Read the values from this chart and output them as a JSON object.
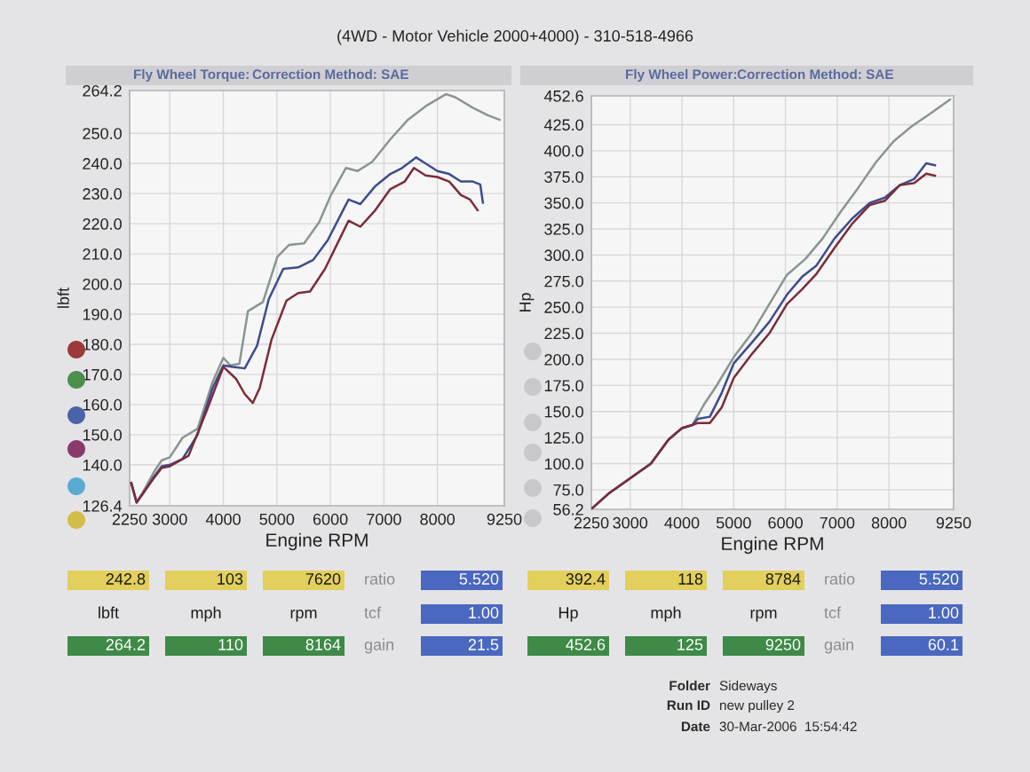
{
  "chart_data": [
    {
      "type": "line",
      "title": "(4WD - Motor Vehicle 2000+4000) - 310-518-4966",
      "subtitle": "Fly Wheel Torque:",
      "annotations": [
        "Correction Method: SAE"
      ],
      "xlabel": "Engine RPM",
      "ylabel": "lbft",
      "xlim": [
        2250,
        9250
      ],
      "xticks": [
        2250,
        3000,
        4000,
        5000,
        6000,
        7000,
        8000,
        9250
      ],
      "ylim": [
        126.4,
        264.2
      ],
      "yticks": [
        126.4,
        {
          "value": 140,
          "label": "140.0"
        },
        {
          "value": 150,
          "label": "150.0"
        },
        {
          "value": 160,
          "label": "160.0"
        },
        {
          "value": 170,
          "label": "170.0"
        },
        {
          "value": 180,
          "label": "180.0"
        },
        {
          "value": 190,
          "label": "190.0"
        },
        {
          "value": 200,
          "label": "200.0"
        },
        {
          "value": 210,
          "label": "210.0"
        },
        {
          "value": 220,
          "label": "220.0"
        },
        {
          "value": 230,
          "label": "230.0"
        },
        {
          "value": 240,
          "label": "240.0"
        },
        {
          "value": 250,
          "label": "250.0"
        },
        264.2
      ],
      "grid": true,
      "series": [
        {
          "color": "#8a9590",
          "x": [
            2280,
            2380,
            2500,
            2700,
            2850,
            3000,
            3240,
            3520,
            3800,
            4000,
            4130,
            4300,
            4460,
            4740,
            5010,
            5230,
            5510,
            5790,
            6010,
            6290,
            6510,
            6780,
            7120,
            7450,
            7780,
            8160,
            8330,
            8660,
            8940,
            9160
          ],
          "values": [
            134.0,
            127.5,
            131.0,
            137.5,
            141.5,
            142.5,
            149.0,
            152.0,
            167.5,
            175.5,
            173.0,
            173.5,
            191.0,
            194.0,
            209.0,
            213.0,
            213.5,
            220.5,
            229.5,
            238.5,
            237.5,
            240.5,
            248.0,
            254.5,
            259.0,
            263.0,
            262.0,
            258.5,
            256.0,
            254.5
          ]
        },
        {
          "color": "#3e4c8c",
          "x": [
            2280,
            2380,
            2500,
            2700,
            2850,
            3000,
            3240,
            3520,
            3800,
            4000,
            4180,
            4400,
            4630,
            4850,
            5120,
            5400,
            5680,
            5950,
            6180,
            6340,
            6560,
            6840,
            7120,
            7340,
            7600,
            7780,
            8000,
            8220,
            8440,
            8660,
            8800,
            8850
          ],
          "values": [
            134.0,
            127.5,
            130.5,
            136.0,
            139.5,
            140.0,
            142.0,
            150.0,
            165.5,
            173.0,
            172.5,
            172.0,
            179.5,
            195.0,
            205.0,
            205.5,
            208.0,
            214.5,
            222.5,
            228.0,
            226.5,
            232.5,
            236.5,
            238.5,
            242.0,
            240.0,
            237.5,
            236.5,
            234.0,
            234.0,
            233.0,
            227.0
          ]
        },
        {
          "color": "#7b2c3a",
          "x": [
            2280,
            2380,
            2500,
            2700,
            2850,
            3000,
            3350,
            3690,
            4000,
            4240,
            4400,
            4550,
            4680,
            4900,
            5180,
            5400,
            5620,
            5900,
            6120,
            6340,
            6560,
            6840,
            7120,
            7390,
            7560,
            7780,
            8000,
            8220,
            8440,
            8610,
            8750
          ],
          "values": [
            134.0,
            127.5,
            130.5,
            135.5,
            139.0,
            139.5,
            143.0,
            158.0,
            172.5,
            168.5,
            163.5,
            160.5,
            165.5,
            181.5,
            194.5,
            197.0,
            197.5,
            205.0,
            213.0,
            221.0,
            219.0,
            224.5,
            231.5,
            234.0,
            238.5,
            236.0,
            235.5,
            234.0,
            229.5,
            228.0,
            224.5
          ]
        }
      ]
    },
    {
      "type": "line",
      "subtitle": "Fly Wheel Power:",
      "annotations": [
        "Correction Method: SAE"
      ],
      "xlabel": "Engine RPM",
      "ylabel": "Hp",
      "xlim": [
        2250,
        9250
      ],
      "xticks": [
        2250,
        3000,
        4000,
        5000,
        6000,
        7000,
        8000,
        9250
      ],
      "ylim": [
        56.2,
        452.6
      ],
      "yticks": [
        56.2,
        {
          "value": 75,
          "label": "75.0"
        },
        {
          "value": 100,
          "label": "100.0"
        },
        {
          "value": 125,
          "label": "125.0"
        },
        {
          "value": 150,
          "label": "150.0"
        },
        {
          "value": 175,
          "label": "175.0"
        },
        {
          "value": 200,
          "label": "200.0"
        },
        {
          "value": 225,
          "label": "225.0"
        },
        {
          "value": 250,
          "label": "250.0"
        },
        {
          "value": 275,
          "label": "275.0"
        },
        {
          "value": 300,
          "label": "300.0"
        },
        {
          "value": 325,
          "label": "325.0"
        },
        {
          "value": 350,
          "label": "350.0"
        },
        {
          "value": 375,
          "label": "375.0"
        },
        {
          "value": 400,
          "label": "400.0"
        },
        {
          "value": 425,
          "label": "425.0"
        },
        452.6
      ],
      "grid": true,
      "series": [
        {
          "color": "#8a9590",
          "x": [
            2260,
            2600,
            3000,
            3400,
            3740,
            4000,
            4200,
            4430,
            4660,
            5000,
            5350,
            5690,
            6030,
            6380,
            6720,
            7060,
            7400,
            7750,
            8090,
            8430,
            8780,
            9180
          ],
          "values": [
            57,
            72,
            86,
            100,
            123,
            134,
            137,
            157,
            174,
            202,
            225,
            253,
            281,
            296,
            316,
            341,
            364,
            389,
            409,
            423,
            435,
            449
          ]
        },
        {
          "color": "#3e4c8c",
          "x": [
            2260,
            2600,
            3000,
            3400,
            3740,
            4000,
            4200,
            4310,
            4540,
            4770,
            5000,
            5350,
            5690,
            6030,
            6320,
            6600,
            6950,
            7290,
            7630,
            7920,
            8210,
            8490,
            8720,
            8890
          ],
          "values": [
            57,
            72,
            86,
            100,
            123,
            134,
            137,
            143,
            145,
            168,
            196,
            216,
            236,
            262,
            279,
            290,
            316,
            335,
            350,
            355,
            367,
            373,
            388,
            386
          ]
        },
        {
          "color": "#7b2c3a",
          "x": [
            2260,
            2600,
            3000,
            3400,
            3740,
            4000,
            4200,
            4310,
            4540,
            4770,
            5000,
            5350,
            5690,
            6030,
            6320,
            6600,
            6950,
            7290,
            7630,
            7920,
            8210,
            8490,
            8720,
            8890
          ],
          "values": [
            57,
            72,
            86,
            100,
            123,
            134,
            137,
            139,
            139,
            154,
            182,
            205,
            225,
            253,
            267,
            282,
            307,
            330,
            348,
            352,
            367,
            369,
            378,
            376
          ]
        }
      ]
    },
    {
      "type": "other",
      "annotations": [
        "242.8",
        "103",
        "7620",
        "ratio",
        "5.520",
        "lbft",
        "mph",
        "rpm",
        "tcf",
        "1.00",
        "264.2",
        "110",
        "8164",
        "gain",
        "21.5"
      ],
      "colors": [
        "#e2cf5c",
        "#e2cf5c",
        "#e2cf5c",
        null,
        "#4a68c0",
        null,
        null,
        null,
        null,
        "#4a68c0",
        "#3f8a48",
        "#3f8a48",
        "#3f8a48",
        null,
        "#4a68c0"
      ]
    },
    {
      "type": "other",
      "annotations": [
        "392.4",
        "118",
        "8784",
        "ratio",
        "5.520",
        "Hp",
        "mph",
        "rpm",
        "tcf",
        "1.00",
        "452.6",
        "125",
        "9250",
        "gain",
        "60.1"
      ],
      "colors": [
        "#e2cf5c",
        "#e2cf5c",
        "#e2cf5c",
        null,
        "#4a68c0",
        null,
        null,
        null,
        null,
        "#4a68c0",
        "#3f8a48",
        "#3f8a48",
        "#3f8a48",
        null,
        "#4a68c0"
      ]
    },
    {
      "type": "other",
      "annotations": [
        "Folder",
        "Sideways",
        "Run ID",
        "new pulley 2",
        "Date",
        "30-Mar-2006  15:54:42"
      ]
    }
  ]
}
